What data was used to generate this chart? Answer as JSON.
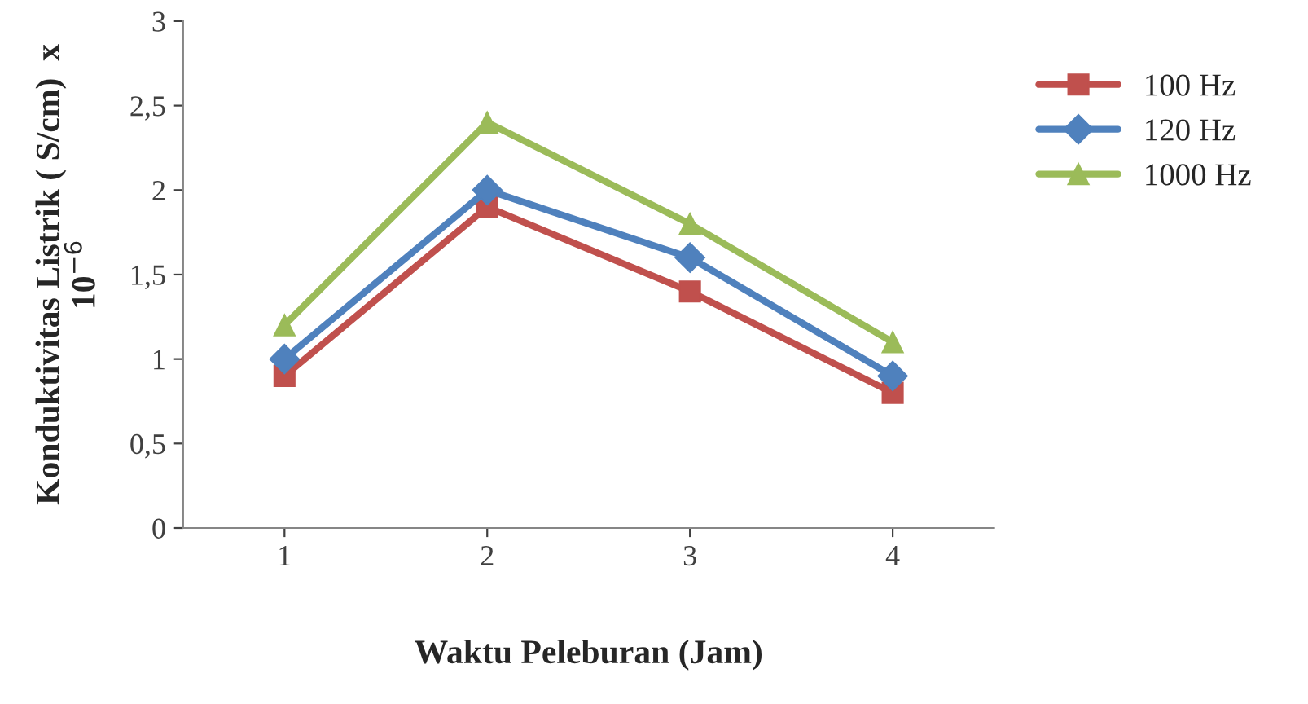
{
  "chart_data": {
    "type": "line",
    "xlabel": "Waktu Peleburan (Jam)",
    "ylabel": "Konduktivitas Listrik ( S/cm)  x\n10$^{−6}$",
    "categories": [
      "1",
      "2",
      "3",
      "4"
    ],
    "series": [
      {
        "name": "100 Hz",
        "color": "#c0504d",
        "marker": "square",
        "values": [
          0.9,
          1.9,
          1.4,
          0.8
        ]
      },
      {
        "name": "120 Hz",
        "color": "#4f81bd",
        "marker": "diamond",
        "values": [
          1.0,
          2.0,
          1.6,
          0.9
        ]
      },
      {
        "name": "1000 Hz",
        "color": "#9bbb59",
        "marker": "triangle",
        "values": [
          1.2,
          2.4,
          1.8,
          1.1
        ]
      }
    ],
    "ylim": [
      0,
      3
    ],
    "yticks": [
      0,
      {
        "value": 0.5,
        "label": "0,5"
      },
      1,
      {
        "value": 1.5,
        "label": "1,5"
      },
      2,
      {
        "value": 2.5,
        "label": "2,5"
      },
      3
    ],
    "grid": false,
    "legend": "right",
    "line_style": "solid"
  }
}
